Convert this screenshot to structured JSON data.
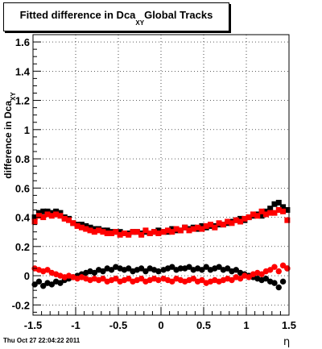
{
  "chart_data": {
    "type": "scatter",
    "title_main": "Fitted difference in Dca",
    "title_sub": "XY",
    "title_tail": "Global Tracks",
    "ylabel": "difference in Dca",
    "ylabel_sub": "XY",
    "xlabel": "η",
    "xlim": [
      -1.5,
      1.5
    ],
    "ylim": [
      -0.27,
      1.65
    ],
    "grid": true,
    "x_ticks": [
      -1.5,
      -1,
      -0.5,
      0,
      0.5,
      1,
      1.5
    ],
    "x_tick_labels": [
      "-1.5",
      "-1",
      "-0.5",
      "0",
      "0.5",
      "1",
      "1.5"
    ],
    "y_ticks": [
      -0.2,
      0,
      0.2,
      0.4,
      0.6,
      0.8,
      1,
      1.2,
      1.4,
      1.6
    ],
    "y_tick_labels": [
      "-0.2",
      "0",
      "0.2",
      "0.4",
      "0.6",
      "0.8",
      "1",
      "1.2",
      "1.4",
      "1.6"
    ],
    "colors": {
      "black": "#000000",
      "red": "#ff0000"
    },
    "series": [
      {
        "color": "#000000",
        "marker": "square",
        "x": [
          -1.48,
          -1.43,
          -1.38,
          -1.33,
          -1.28,
          -1.23,
          -1.18,
          -1.13,
          -1.08,
          -1.03,
          -0.98,
          -0.93,
          -0.88,
          -0.83,
          -0.78,
          -0.73,
          -0.68,
          -0.63,
          -0.58,
          -0.53,
          -0.48,
          -0.43,
          -0.38,
          -0.33,
          -0.28,
          -0.23,
          -0.18,
          -0.13,
          -0.08,
          -0.03,
          0.03,
          0.08,
          0.13,
          0.18,
          0.23,
          0.28,
          0.33,
          0.38,
          0.43,
          0.48,
          0.53,
          0.58,
          0.63,
          0.68,
          0.73,
          0.78,
          0.83,
          0.88,
          0.93,
          0.98,
          1.03,
          1.08,
          1.13,
          1.18,
          1.23,
          1.28,
          1.33,
          1.38,
          1.43,
          1.48
        ],
        "y": [
          0.4,
          0.43,
          0.44,
          0.44,
          0.43,
          0.44,
          0.43,
          0.4,
          0.39,
          0.36,
          0.35,
          0.35,
          0.34,
          0.33,
          0.32,
          0.32,
          0.31,
          0.31,
          0.3,
          0.3,
          0.3,
          0.29,
          0.29,
          0.3,
          0.3,
          0.29,
          0.3,
          0.29,
          0.3,
          0.31,
          0.3,
          0.3,
          0.32,
          0.31,
          0.31,
          0.33,
          0.32,
          0.33,
          0.32,
          0.34,
          0.33,
          0.34,
          0.34,
          0.35,
          0.35,
          0.36,
          0.37,
          0.38,
          0.39,
          0.38,
          0.4,
          0.41,
          0.42,
          0.41,
          0.44,
          0.46,
          0.49,
          0.5,
          0.47,
          0.45
        ]
      },
      {
        "color": "#ff0000",
        "marker": "square",
        "x": [
          -1.48,
          -1.43,
          -1.38,
          -1.33,
          -1.28,
          -1.23,
          -1.18,
          -1.13,
          -1.08,
          -1.03,
          -0.98,
          -0.93,
          -0.88,
          -0.83,
          -0.78,
          -0.73,
          -0.68,
          -0.63,
          -0.58,
          -0.53,
          -0.48,
          -0.43,
          -0.38,
          -0.33,
          -0.28,
          -0.23,
          -0.18,
          -0.13,
          -0.08,
          -0.03,
          0.03,
          0.08,
          0.13,
          0.18,
          0.23,
          0.28,
          0.33,
          0.38,
          0.43,
          0.48,
          0.53,
          0.58,
          0.63,
          0.68,
          0.73,
          0.78,
          0.83,
          0.88,
          0.93,
          0.98,
          1.03,
          1.08,
          1.13,
          1.18,
          1.23,
          1.28,
          1.33,
          1.38,
          1.43,
          1.48
        ],
        "y": [
          0.37,
          0.41,
          0.4,
          0.42,
          0.41,
          0.42,
          0.41,
          0.39,
          0.38,
          0.36,
          0.34,
          0.33,
          0.32,
          0.31,
          0.3,
          0.31,
          0.3,
          0.29,
          0.29,
          0.3,
          0.28,
          0.29,
          0.28,
          0.3,
          0.3,
          0.28,
          0.31,
          0.29,
          0.3,
          0.29,
          0.3,
          0.31,
          0.3,
          0.32,
          0.31,
          0.33,
          0.31,
          0.32,
          0.33,
          0.32,
          0.34,
          0.35,
          0.33,
          0.36,
          0.35,
          0.37,
          0.36,
          0.38,
          0.37,
          0.39,
          0.4,
          0.42,
          0.41,
          0.44,
          0.42,
          0.43,
          0.43,
          0.45,
          0.44,
          0.38
        ]
      },
      {
        "color": "#000000",
        "marker": "circle",
        "x": [
          -1.48,
          -1.43,
          -1.38,
          -1.33,
          -1.28,
          -1.23,
          -1.18,
          -1.13,
          -1.08,
          -1.03,
          -0.98,
          -0.93,
          -0.88,
          -0.83,
          -0.78,
          -0.73,
          -0.68,
          -0.63,
          -0.58,
          -0.53,
          -0.48,
          -0.43,
          -0.38,
          -0.33,
          -0.28,
          -0.23,
          -0.18,
          -0.13,
          -0.08,
          -0.03,
          0.03,
          0.08,
          0.13,
          0.18,
          0.23,
          0.28,
          0.33,
          0.38,
          0.43,
          0.48,
          0.53,
          0.58,
          0.63,
          0.68,
          0.73,
          0.78,
          0.83,
          0.88,
          0.93,
          0.98,
          1.03,
          1.08,
          1.13,
          1.18,
          1.23,
          1.28,
          1.33,
          1.38,
          1.43,
          1.48
        ],
        "y": [
          -0.06,
          -0.04,
          -0.07,
          -0.05,
          -0.06,
          -0.04,
          -0.05,
          -0.03,
          -0.02,
          -0.01,
          0.0,
          0.01,
          0.02,
          0.03,
          0.02,
          0.04,
          0.03,
          0.05,
          0.04,
          0.06,
          0.05,
          0.04,
          0.05,
          0.03,
          0.04,
          0.05,
          0.03,
          0.05,
          0.04,
          0.03,
          0.04,
          0.05,
          0.06,
          0.04,
          0.05,
          0.05,
          0.06,
          0.04,
          0.05,
          0.04,
          0.06,
          0.04,
          0.05,
          0.06,
          0.04,
          0.05,
          0.03,
          0.04,
          0.02,
          0.01,
          0.0,
          -0.01,
          -0.02,
          -0.03,
          -0.02,
          -0.04,
          -0.05,
          -0.08,
          -0.04,
          0.05
        ]
      },
      {
        "color": "#ff0000",
        "marker": "circle",
        "x": [
          -1.48,
          -1.43,
          -1.38,
          -1.33,
          -1.28,
          -1.23,
          -1.18,
          -1.13,
          -1.08,
          -1.03,
          -0.98,
          -0.93,
          -0.88,
          -0.83,
          -0.78,
          -0.73,
          -0.68,
          -0.63,
          -0.58,
          -0.53,
          -0.48,
          -0.43,
          -0.38,
          -0.33,
          -0.28,
          -0.23,
          -0.18,
          -0.13,
          -0.08,
          -0.03,
          0.03,
          0.08,
          0.13,
          0.18,
          0.23,
          0.28,
          0.33,
          0.38,
          0.43,
          0.48,
          0.53,
          0.58,
          0.63,
          0.68,
          0.73,
          0.78,
          0.83,
          0.88,
          0.93,
          0.98,
          1.03,
          1.08,
          1.13,
          1.18,
          1.23,
          1.28,
          1.33,
          1.38,
          1.43,
          1.48
        ],
        "y": [
          0.05,
          0.04,
          0.03,
          0.04,
          0.02,
          0.01,
          0.0,
          -0.01,
          0.0,
          -0.01,
          -0.02,
          -0.01,
          -0.02,
          -0.03,
          -0.02,
          -0.03,
          -0.02,
          -0.04,
          -0.03,
          -0.02,
          -0.04,
          -0.03,
          -0.02,
          -0.04,
          -0.03,
          -0.02,
          -0.04,
          -0.03,
          -0.02,
          -0.03,
          -0.02,
          -0.03,
          -0.04,
          -0.02,
          -0.03,
          -0.04,
          -0.03,
          -0.02,
          -0.04,
          -0.03,
          -0.05,
          -0.04,
          -0.03,
          -0.04,
          -0.03,
          -0.02,
          -0.03,
          -0.01,
          -0.02,
          0.0,
          -0.01,
          0.01,
          0.02,
          0.01,
          0.03,
          0.04,
          0.06,
          0.03,
          0.07,
          0.05
        ]
      }
    ]
  },
  "footer": {
    "datetime": "Thu Oct 27 22:04:22 2011"
  }
}
